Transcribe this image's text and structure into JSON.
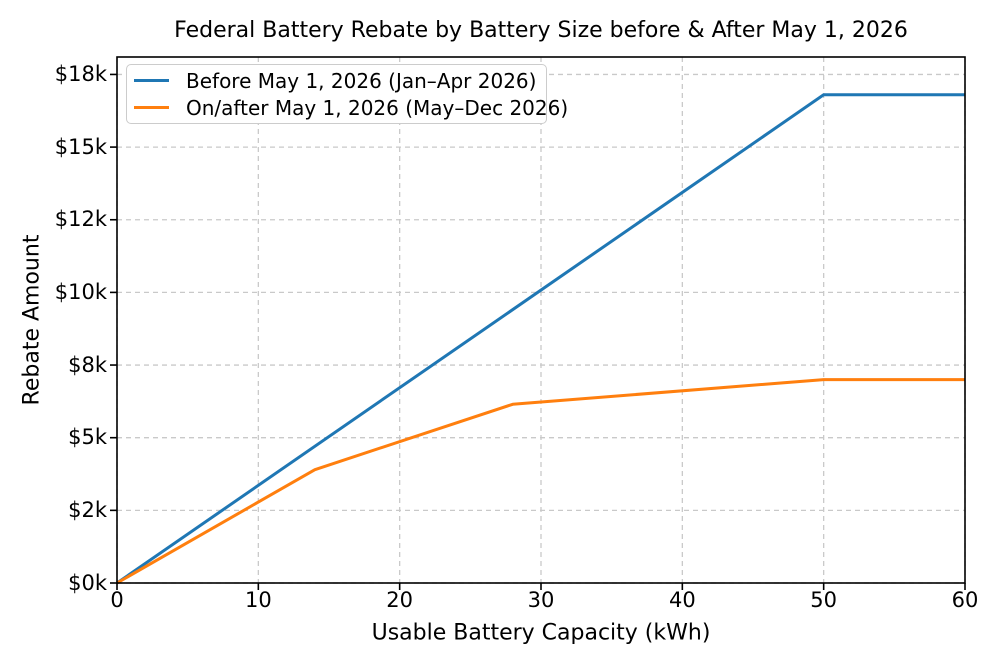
{
  "chart_data": {
    "type": "line",
    "title": "Federal Battery Rebate by Battery Size before & After May 1, 2026",
    "xlabel": "Usable Battery Capacity (kWh)",
    "ylabel": "Rebate Amount",
    "xlim": [
      0,
      60
    ],
    "ylim": [
      0,
      18100
    ],
    "x_ticks": {
      "values": [
        0,
        10,
        20,
        30,
        40,
        50,
        60
      ],
      "labels": [
        "0",
        "10",
        "20",
        "30",
        "40",
        "50",
        "60"
      ]
    },
    "y_ticks": {
      "values": [
        0,
        2500,
        5000,
        7500,
        10000,
        12500,
        15000,
        17500
      ],
      "labels": [
        "$0k",
        "$2k",
        "$5k",
        "$8k",
        "$10k",
        "$12k",
        "$15k",
        "$18k"
      ]
    },
    "grid": {
      "visible": true,
      "style": "dashed",
      "color": "#c9c9c9"
    },
    "legend": {
      "position": "upper-left"
    },
    "axis_color": "#000000",
    "series": [
      {
        "name": "Before May 1, 2026 (Jan–Apr 2026)",
        "color": "#1f77b4",
        "points": [
          [
            0,
            0
          ],
          [
            50,
            16800
          ],
          [
            60,
            16800
          ]
        ]
      },
      {
        "name": "On/after May 1, 2026 (May–Dec 2026)",
        "color": "#ff7f0e",
        "points": [
          [
            0,
            0
          ],
          [
            14,
            3900
          ],
          [
            28,
            6150
          ],
          [
            50,
            7000
          ],
          [
            60,
            7000
          ]
        ]
      }
    ]
  }
}
